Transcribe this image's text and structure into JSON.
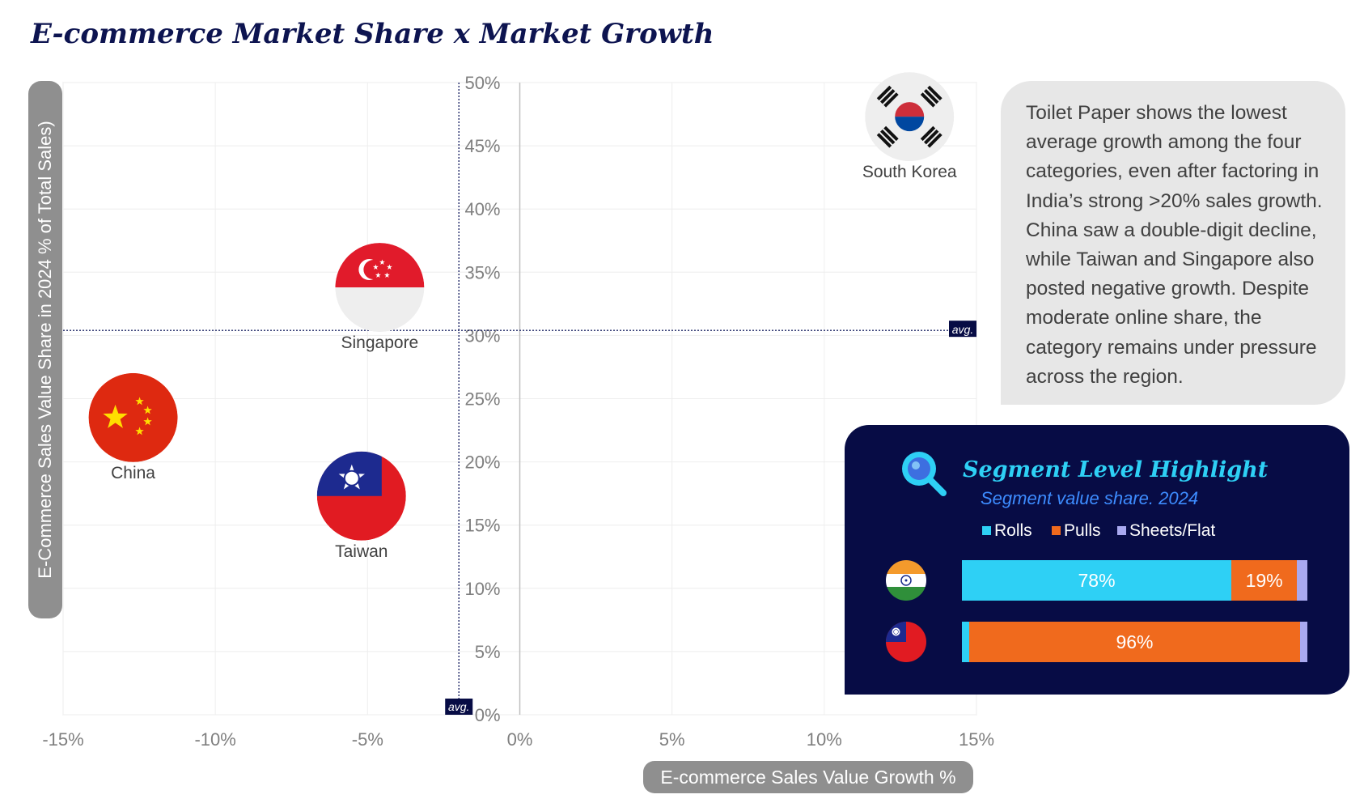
{
  "title": "E-commerce Market Share x Market Growth",
  "chart_data": {
    "type": "scatter",
    "title": "E-commerce Market Share x Market Growth",
    "xlabel": "E-commerce Sales Value Growth %",
    "ylabel": "E-Commerce Sales Value Share in 2024  % of Total Sales)",
    "xlim": [
      -15,
      15
    ],
    "ylim": [
      0,
      50
    ],
    "x_ticks": [
      "-15%",
      "-10%",
      "-5%",
      "0%",
      "5%",
      "10%",
      "15%"
    ],
    "y_ticks": [
      "0%",
      "5%",
      "10%",
      "15%",
      "20%",
      "25%",
      "30%",
      "35%",
      "40%",
      "45%",
      "50%"
    ],
    "avg_label": "avg.",
    "avg_x": -2,
    "avg_y": 30.4,
    "points": [
      {
        "name": "South Korea",
        "x": 12.8,
        "y": 47.3,
        "flag": "south-korea-flag"
      },
      {
        "name": "Singapore",
        "x": -4.6,
        "y": 33.8,
        "flag": "singapore-flag"
      },
      {
        "name": "China",
        "x": -12.7,
        "y": 23.5,
        "flag": "china-flag"
      },
      {
        "name": "Taiwan",
        "x": -5.2,
        "y": 17.3,
        "flag": "taiwan-flag"
      }
    ]
  },
  "insight": {
    "text": "Toilet Paper shows the lowest average growth among the four categories, even after factoring in India’s strong >20% sales growth. China saw a double-digit decline, while Taiwan and Singapore also posted negative growth. Despite moderate online share, the category remains under pressure across the region."
  },
  "segment": {
    "icon": "magnifier-icon",
    "title": "Segment Level Highlight",
    "subtitle": "Segment value share. 2024",
    "legend": [
      {
        "label": "Rolls",
        "color": "#2ed0f5"
      },
      {
        "label": "Pulls",
        "color": "#f06a1d"
      },
      {
        "label": "Sheets/Flat",
        "color": "#a9a9f0"
      }
    ],
    "rows": [
      {
        "country": "India",
        "flag": "india-flag",
        "shares": [
          78,
          19,
          3
        ],
        "labels": [
          "78%",
          "19%",
          ""
        ]
      },
      {
        "country": "Taiwan",
        "flag": "taiwan-flag",
        "shares": [
          2,
          96,
          2
        ],
        "labels": [
          "",
          "96%",
          ""
        ]
      }
    ]
  }
}
